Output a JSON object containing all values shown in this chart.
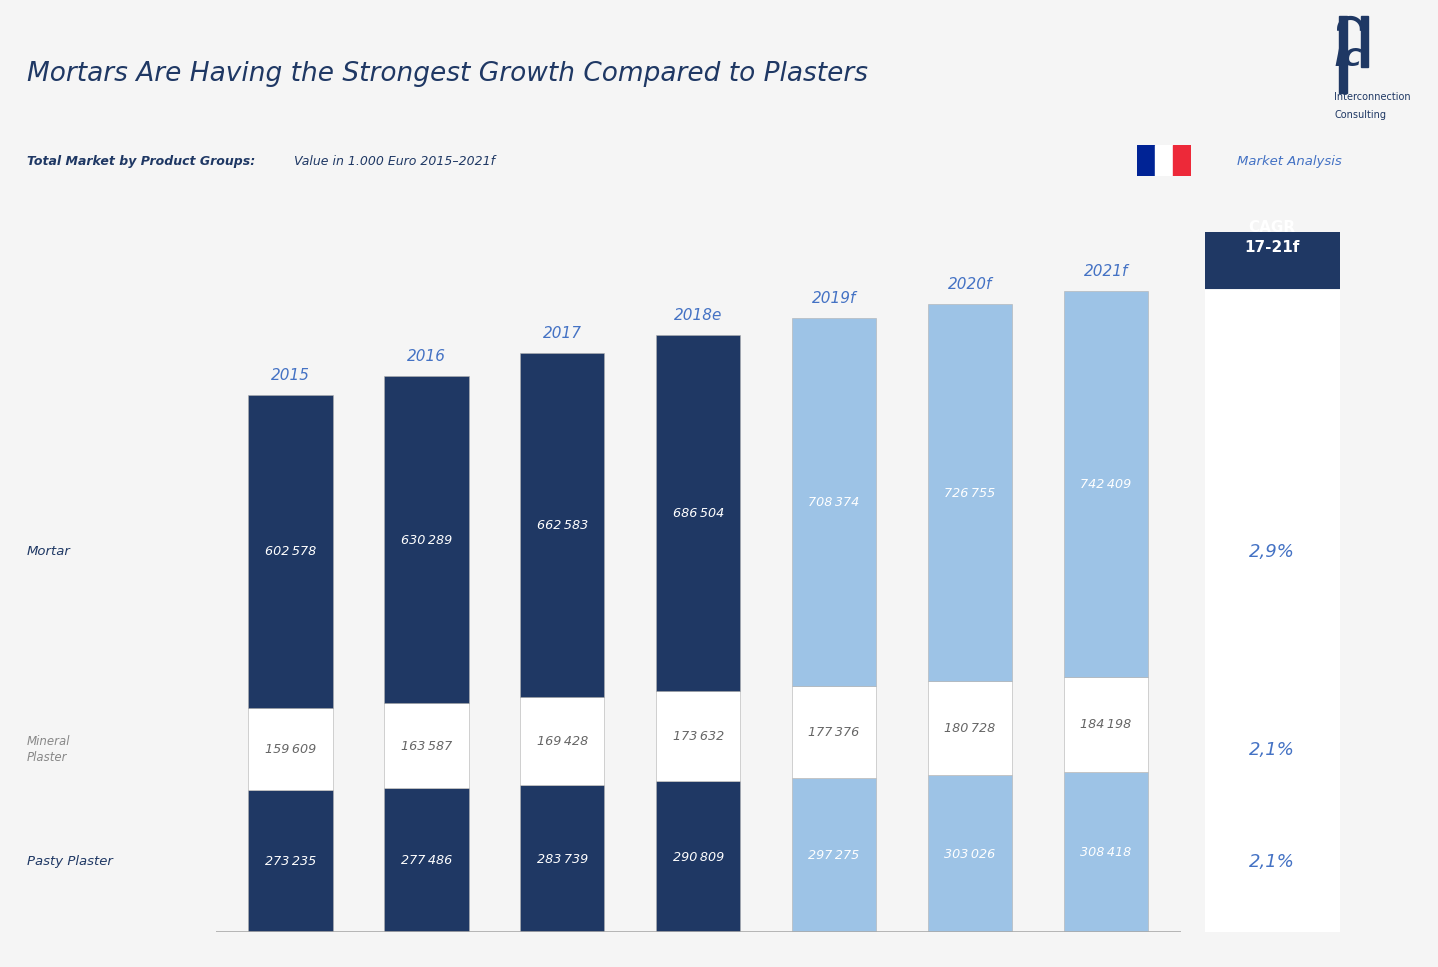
{
  "title": "Mortars Are Having the Strongest Growth Compared to Plasters",
  "subtitle_bold": "Total Market by Product Groups:",
  "subtitle_normal": " Value in 1.000 Euro 2015–2021f",
  "market_analysis": "Market Analysis",
  "years": [
    "2015",
    "2016",
    "2017",
    "2018e",
    "2019f",
    "2020f",
    "2021f"
  ],
  "mortar": [
    602578,
    630289,
    662583,
    686504,
    708374,
    726755,
    742409
  ],
  "mineral_plaster": [
    159609,
    163587,
    169428,
    173632,
    177376,
    180728,
    184198
  ],
  "pasty_plaster": [
    273235,
    277486,
    283739,
    290809,
    297275,
    303026,
    308418
  ],
  "cagr_mortar": "2,9%",
  "cagr_mineral": "2,1%",
  "cagr_pasty": "2,1%",
  "cagr_label": "CAGR\n17-21f",
  "color_dark_blue": "#1F3864",
  "color_mid_blue": "#2E5EA8",
  "color_light_blue": "#9DC3E6",
  "color_white": "#FFFFFF",
  "color_bg": "#F5F5F5",
  "color_panel_bg": "#FFFFFF",
  "color_title": "#1F3864",
  "color_header_bar": "#1F3864",
  "color_cagr_text": "#4472C4",
  "color_market_analysis": "#4472C4",
  "color_year_label": "#4472C4",
  "color_mortar_label": "#1F3864",
  "color_pasty_label": "#1F3864",
  "color_mineral_label": "#888888",
  "flag_blue": "#002395",
  "flag_red": "#ED2939",
  "ylim": 1350000,
  "bar_width": 0.62
}
